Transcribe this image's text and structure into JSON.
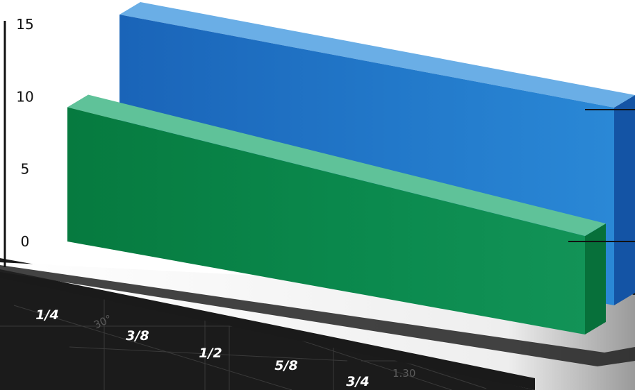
{
  "chart_data": {
    "type": "bar",
    "title": "",
    "xlabel": "",
    "ylabel": "",
    "ylim": [
      0,
      15
    ],
    "y_ticks": [
      0,
      5,
      10,
      15
    ],
    "x_categories": [
      "1/4",
      "3/8",
      "1/2",
      "5/8",
      "3/4"
    ],
    "series": [
      {
        "values": [
          15,
          15,
          15,
          15,
          15
        ],
        "color": "#1f74c7"
      },
      {
        "values": [
          9,
          8.4,
          7.8,
          7.2,
          6.6
        ],
        "color": "#0b8a4e"
      }
    ],
    "background_marks": {
      "angle": "30°",
      "value": "1.30"
    },
    "grid": false,
    "legend": "none"
  }
}
